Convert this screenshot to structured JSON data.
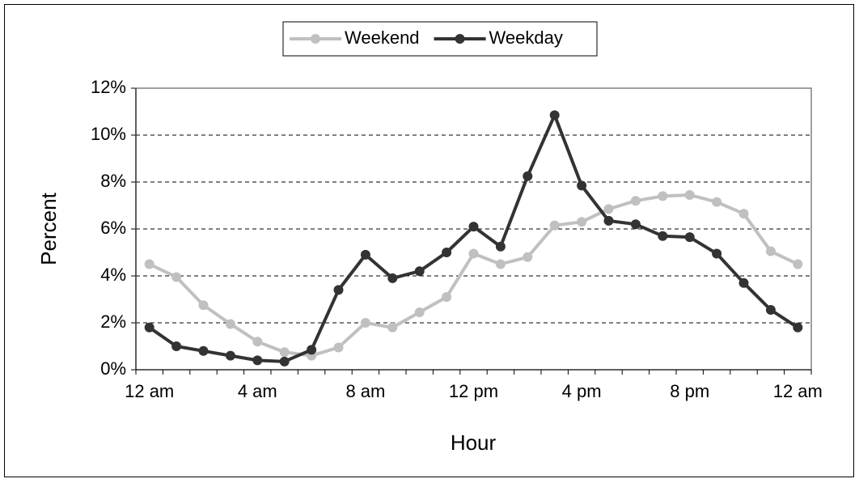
{
  "chart_data": {
    "type": "line",
    "x_label": "Hour",
    "y_label": "Percent",
    "categories": [
      "12 am",
      null,
      null,
      null,
      "4 am",
      null,
      null,
      null,
      "8 am",
      null,
      null,
      null,
      "12 pm",
      null,
      null,
      null,
      "4 pm",
      null,
      null,
      null,
      "8 pm",
      null,
      null,
      null,
      "12 am"
    ],
    "series": [
      {
        "name": "Weekend",
        "color": "#c0c0c0",
        "values": [
          4.5,
          3.95,
          2.75,
          1.95,
          1.2,
          0.75,
          0.6,
          0.95,
          2.0,
          1.8,
          2.45,
          3.1,
          4.95,
          4.5,
          4.8,
          6.15,
          6.3,
          6.85,
          7.2,
          7.4,
          7.45,
          7.15,
          6.65,
          5.05,
          4.5
        ]
      },
      {
        "name": "Weekday",
        "color": "#333333",
        "values": [
          1.8,
          1.0,
          0.8,
          0.6,
          0.4,
          0.35,
          0.85,
          3.4,
          4.9,
          3.9,
          4.2,
          5.0,
          6.1,
          5.25,
          8.25,
          10.85,
          7.85,
          6.35,
          6.2,
          5.7,
          5.65,
          4.95,
          3.7,
          2.55,
          1.8
        ]
      }
    ],
    "ylim": [
      0,
      12
    ],
    "yticks": [
      {
        "value": 0,
        "label": "0%"
      },
      {
        "value": 2,
        "label": "2%"
      },
      {
        "value": 4,
        "label": "4%"
      },
      {
        "value": 6,
        "label": "6%"
      },
      {
        "value": 8,
        "label": "8%"
      },
      {
        "value": 10,
        "label": "10%"
      },
      {
        "value": 12,
        "label": "12%"
      }
    ],
    "grid": true,
    "legend": "top"
  }
}
